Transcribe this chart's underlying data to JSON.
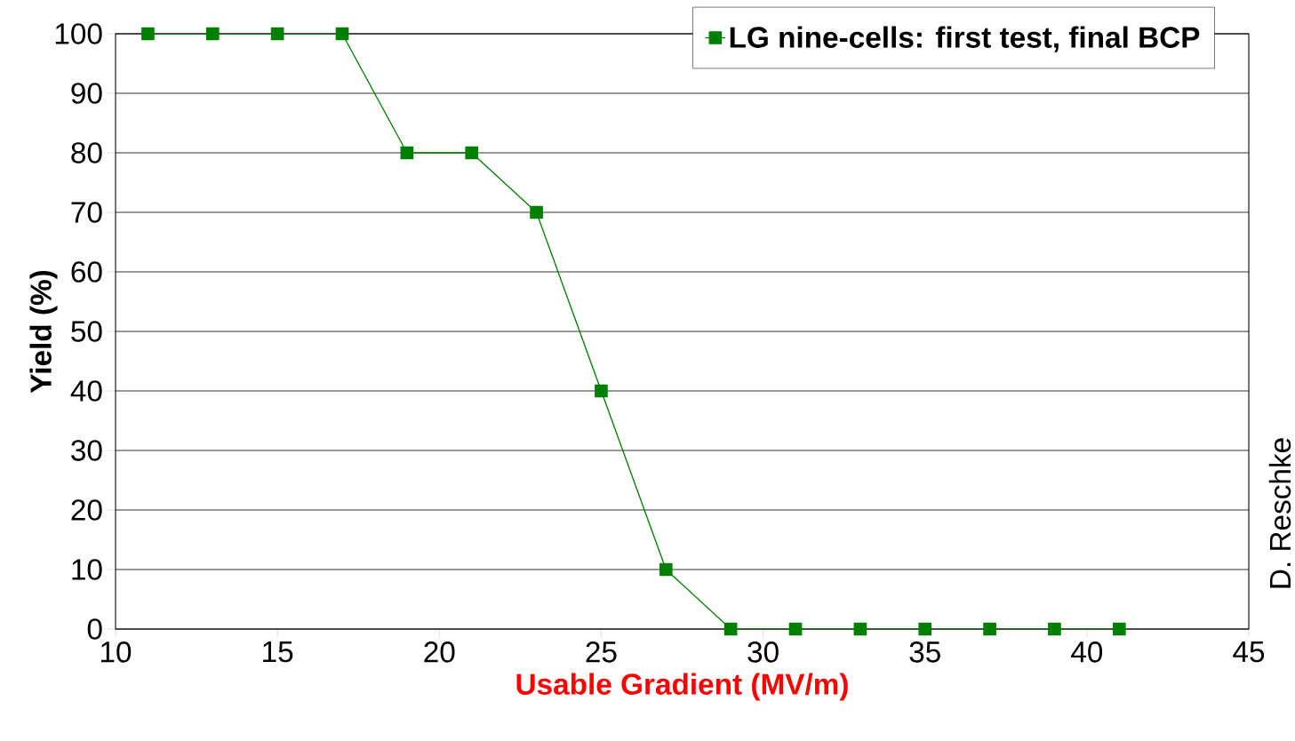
{
  "chart_data": {
    "type": "line",
    "xlabel": "Usable Gradient (MV/m)",
    "ylabel": "Yield (%)",
    "x": [
      11,
      13,
      15,
      17,
      19,
      21,
      23,
      25,
      27,
      29,
      31,
      33,
      35,
      37,
      39,
      41
    ],
    "series": [
      {
        "name": "LG nine-cells: first test, final BCP",
        "color": "#008000",
        "values": [
          100,
          100,
          100,
          100,
          80,
          80,
          70,
          40,
          10,
          0,
          0,
          0,
          0,
          0,
          0,
          0
        ]
      }
    ],
    "xlim": [
      10,
      45
    ],
    "ylim": [
      0,
      100
    ],
    "xticks": [
      10,
      15,
      20,
      25,
      30,
      35,
      40,
      45
    ],
    "yticks": [
      0,
      10,
      20,
      30,
      40,
      50,
      60,
      70,
      80,
      90,
      100
    ],
    "grid": "y",
    "legend": "top right",
    "marker": "square",
    "annotations": [
      "D. Reschke"
    ]
  }
}
